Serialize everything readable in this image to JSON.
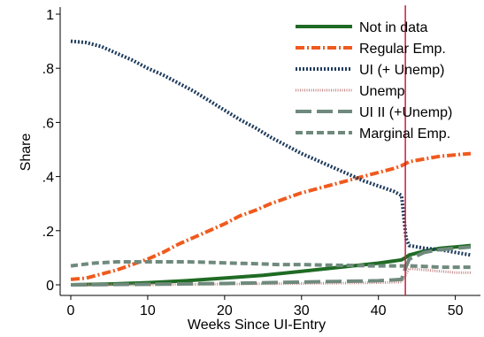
{
  "chart_data": {
    "type": "line",
    "title": "",
    "xlabel": "Weeks Since UI-Entry",
    "ylabel": "Share",
    "xlim": [
      0,
      52
    ],
    "ylim": [
      0,
      1
    ],
    "x_ticks": [
      0,
      10,
      20,
      30,
      40,
      50
    ],
    "x_tick_labels": [
      "0",
      "10",
      "20",
      "30",
      "40",
      "50"
    ],
    "y_ticks": [
      0,
      0.2,
      0.4,
      0.6,
      0.8,
      1
    ],
    "y_tick_labels": [
      "0",
      ".2",
      ".4",
      ".6",
      ".8",
      "1"
    ],
    "grid": false,
    "legend_position": "top-right",
    "vline": {
      "x": 43.5,
      "color": "#cc1b3e"
    },
    "series": [
      {
        "name": "Not in data",
        "color": "#1f6b24",
        "style": "solid",
        "x": [
          0,
          5,
          10,
          15,
          20,
          25,
          30,
          35,
          40,
          43,
          43.5,
          44,
          46,
          48,
          50,
          52
        ],
        "y": [
          0.0,
          0.003,
          0.008,
          0.015,
          0.025,
          0.035,
          0.05,
          0.065,
          0.08,
          0.092,
          0.1,
          0.11,
          0.125,
          0.135,
          0.14,
          0.145
        ]
      },
      {
        "name": "Regular Emp.",
        "color": "#f05a1e",
        "style": "dashdot",
        "x": [
          0,
          2,
          4,
          6,
          8,
          10,
          12,
          14,
          16,
          18,
          20,
          22,
          24,
          26,
          28,
          30,
          32,
          34,
          36,
          38,
          40,
          42,
          43,
          44,
          46,
          48,
          50,
          52
        ],
        "y": [
          0.02,
          0.025,
          0.04,
          0.055,
          0.075,
          0.095,
          0.12,
          0.15,
          0.175,
          0.2,
          0.225,
          0.255,
          0.275,
          0.3,
          0.32,
          0.34,
          0.355,
          0.37,
          0.385,
          0.4,
          0.415,
          0.43,
          0.44,
          0.455,
          0.465,
          0.475,
          0.48,
          0.485
        ]
      },
      {
        "name": "UI (+ Unemp)",
        "color": "#1f3b5e",
        "style": "dotted",
        "x": [
          0,
          2,
          4,
          6,
          8,
          10,
          12,
          14,
          16,
          18,
          20,
          22,
          24,
          26,
          28,
          30,
          32,
          34,
          36,
          38,
          40,
          42,
          43,
          43.3,
          43.6,
          44,
          46,
          48,
          50,
          52
        ],
        "y": [
          0.9,
          0.895,
          0.88,
          0.855,
          0.83,
          0.8,
          0.775,
          0.745,
          0.715,
          0.68,
          0.645,
          0.61,
          0.58,
          0.545,
          0.515,
          0.485,
          0.46,
          0.435,
          0.41,
          0.385,
          0.365,
          0.345,
          0.33,
          0.25,
          0.17,
          0.145,
          0.135,
          0.13,
          0.12,
          0.11
        ]
      },
      {
        "name": "Unemp",
        "color": "#c48a8a",
        "style": "fine-dotted",
        "x": [
          0,
          10,
          20,
          30,
          40,
          43,
          44,
          46,
          48,
          50,
          52
        ],
        "y": [
          0.0,
          0.0,
          0.003,
          0.005,
          0.008,
          0.01,
          0.06,
          0.055,
          0.05,
          0.045,
          0.045
        ]
      },
      {
        "name": "UI II (+Unemp)",
        "color": "#6f8a7d",
        "style": "longdash",
        "x": [
          0,
          10,
          20,
          30,
          40,
          43,
          43.5,
          44,
          46,
          48,
          50,
          52
        ],
        "y": [
          0.0,
          0.002,
          0.005,
          0.01,
          0.015,
          0.02,
          0.06,
          0.095,
          0.12,
          0.13,
          0.135,
          0.14
        ]
      },
      {
        "name": "Marginal Emp.",
        "color": "#6f8a7d",
        "style": "shortdash",
        "x": [
          0,
          3,
          6,
          9,
          12,
          15,
          18,
          21,
          24,
          27,
          30,
          33,
          36,
          39,
          42,
          43,
          44,
          46,
          48,
          50,
          52
        ],
        "y": [
          0.07,
          0.08,
          0.085,
          0.085,
          0.085,
          0.085,
          0.083,
          0.08,
          0.078,
          0.075,
          0.075,
          0.073,
          0.072,
          0.07,
          0.07,
          0.07,
          0.07,
          0.068,
          0.065,
          0.065,
          0.065
        ]
      }
    ]
  }
}
